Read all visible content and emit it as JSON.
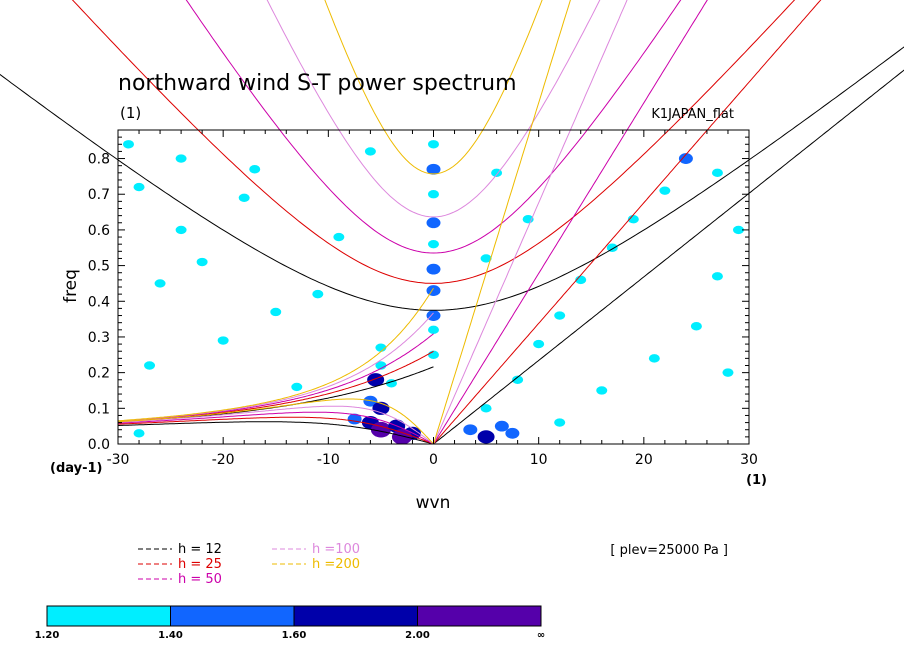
{
  "chart_data": {
    "type": "heatmap",
    "title": "northward wind S-T power spectrum",
    "units": "(1)",
    "case_label": "K1JAPAN_flat",
    "xlabel": "wvn",
    "ylabel": "freq",
    "x_unit": "(1)",
    "y_unit": "(day-1)",
    "xlim": [
      -30,
      30
    ],
    "ylim": [
      0,
      0.88
    ],
    "x_ticks": [
      "-30",
      "-20",
      "-10",
      "0",
      "10",
      "20",
      "30"
    ],
    "y_ticks": [
      "0.0",
      "0.1",
      "0.2",
      "0.3",
      "0.4",
      "0.5",
      "0.6",
      "0.7",
      "0.8"
    ],
    "annotation": "[ plev=25000 Pa ]",
    "dispersion_curves": [
      {
        "label": "h = 12",
        "h": 12,
        "color": "#000000"
      },
      {
        "label": "h = 25",
        "h": 25,
        "color": "#dd0000"
      },
      {
        "label": "h = 50",
        "h": 50,
        "color": "#cc00aa"
      },
      {
        "label": "h =100",
        "h": 100,
        "color": "#dd88dd"
      },
      {
        "label": "h =200",
        "h": 200,
        "color": "#eebb00"
      }
    ],
    "color_levels": [
      "1.20",
      "1.40",
      "1.60",
      "2.00",
      "∞"
    ],
    "color_fills": [
      "#00eeff",
      "#1166ff",
      "#0000aa",
      "#5500aa"
    ],
    "contour_regions": [
      {
        "x": 0,
        "y": 0.84,
        "level": 1
      },
      {
        "x": 0,
        "y": 0.77,
        "level": 2
      },
      {
        "x": 0,
        "y": 0.7,
        "level": 1
      },
      {
        "x": 0,
        "y": 0.62,
        "level": 2
      },
      {
        "x": 0,
        "y": 0.56,
        "level": 1
      },
      {
        "x": 0,
        "y": 0.49,
        "level": 2
      },
      {
        "x": 0,
        "y": 0.43,
        "level": 2
      },
      {
        "x": 0,
        "y": 0.36,
        "level": 2
      },
      {
        "x": 0,
        "y": 0.32,
        "level": 1
      },
      {
        "x": 0,
        "y": 0.25,
        "level": 1
      },
      {
        "x": -5,
        "y": 0.27,
        "level": 1
      },
      {
        "x": -5,
        "y": 0.22,
        "level": 1
      },
      {
        "x": -5.5,
        "y": 0.18,
        "level": 3
      },
      {
        "x": -4,
        "y": 0.17,
        "level": 1
      },
      {
        "x": -6,
        "y": 0.12,
        "level": 2
      },
      {
        "x": -5,
        "y": 0.1,
        "level": 3
      },
      {
        "x": -7.5,
        "y": 0.07,
        "level": 2
      },
      {
        "x": -6,
        "y": 0.06,
        "level": 3
      },
      {
        "x": -5,
        "y": 0.04,
        "level": 4
      },
      {
        "x": -3.5,
        "y": 0.05,
        "level": 3
      },
      {
        "x": -2,
        "y": 0.03,
        "level": 3
      },
      {
        "x": -3,
        "y": 0.02,
        "level": 4
      },
      {
        "x": 3.5,
        "y": 0.04,
        "level": 2
      },
      {
        "x": 5,
        "y": 0.02,
        "level": 3
      },
      {
        "x": 6.5,
        "y": 0.05,
        "level": 2
      },
      {
        "x": 7.5,
        "y": 0.03,
        "level": 2
      },
      {
        "x": 5,
        "y": 0.1,
        "level": 1
      },
      {
        "x": 8,
        "y": 0.18,
        "level": 1
      },
      {
        "x": 10,
        "y": 0.28,
        "level": 1
      },
      {
        "x": 12,
        "y": 0.36,
        "level": 1
      },
      {
        "x": 14,
        "y": 0.46,
        "level": 1
      },
      {
        "x": 17,
        "y": 0.55,
        "level": 1
      },
      {
        "x": 19,
        "y": 0.63,
        "level": 1
      },
      {
        "x": 22,
        "y": 0.71,
        "level": 1
      },
      {
        "x": 24,
        "y": 0.8,
        "level": 2
      },
      {
        "x": 27,
        "y": 0.76,
        "level": 1
      },
      {
        "x": 21,
        "y": 0.24,
        "level": 1
      },
      {
        "x": 25,
        "y": 0.33,
        "level": 1
      },
      {
        "x": 28,
        "y": 0.2,
        "level": 1
      },
      {
        "x": 16,
        "y": 0.15,
        "level": 1
      },
      {
        "x": 12,
        "y": 0.06,
        "level": 1
      },
      {
        "x": 27,
        "y": 0.47,
        "level": 1
      },
      {
        "x": -29,
        "y": 0.84,
        "level": 1
      },
      {
        "x": -24,
        "y": 0.8,
        "level": 1
      },
      {
        "x": -28,
        "y": 0.72,
        "level": 1
      },
      {
        "x": -18,
        "y": 0.69,
        "level": 1
      },
      {
        "x": -22,
        "y": 0.51,
        "level": 1
      },
      {
        "x": -26,
        "y": 0.45,
        "level": 1
      },
      {
        "x": -15,
        "y": 0.37,
        "level": 1
      },
      {
        "x": -20,
        "y": 0.29,
        "level": 1
      },
      {
        "x": -11,
        "y": 0.42,
        "level": 1
      },
      {
        "x": -27,
        "y": 0.22,
        "level": 1
      },
      {
        "x": -13,
        "y": 0.16,
        "level": 1
      },
      {
        "x": -28,
        "y": 0.03,
        "level": 1
      },
      {
        "x": -9,
        "y": 0.58,
        "level": 1
      },
      {
        "x": -17,
        "y": 0.77,
        "level": 1
      },
      {
        "x": -6,
        "y": 0.82,
        "level": 1
      },
      {
        "x": 6,
        "y": 0.76,
        "level": 1
      },
      {
        "x": 9,
        "y": 0.63,
        "level": 1
      },
      {
        "x": 5,
        "y": 0.52,
        "level": 1
      },
      {
        "x": -24,
        "y": 0.6,
        "level": 1
      },
      {
        "x": 29,
        "y": 0.6,
        "level": 1
      }
    ]
  }
}
